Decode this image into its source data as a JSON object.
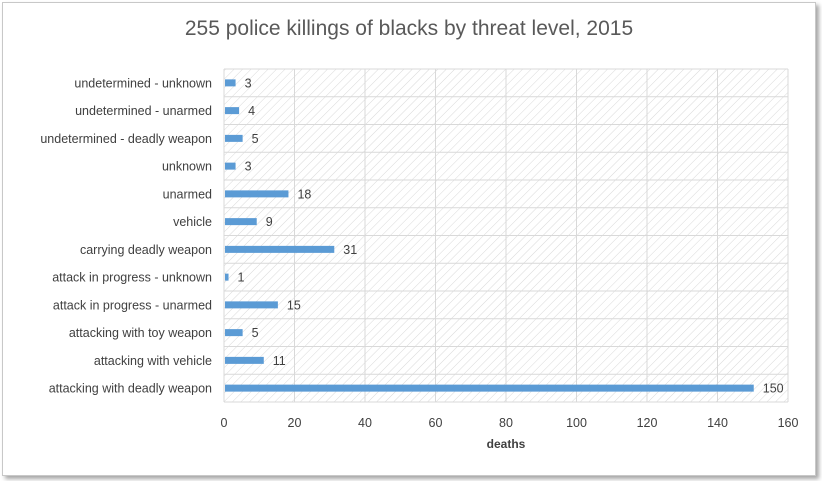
{
  "chart_data": {
    "type": "bar",
    "orientation": "horizontal",
    "title": "255 police killings of blacks by threat level, 2015",
    "xlabel": "deaths",
    "ylabel": "",
    "xlim": [
      0,
      160
    ],
    "xticks": [
      0,
      20,
      40,
      60,
      80,
      100,
      120,
      140,
      160
    ],
    "categories": [
      "undetermined - unknown",
      "undetermined - unarmed",
      "undetermined - deadly weapon",
      "unknown",
      "unarmed",
      "vehicle",
      "carrying deadly weapon",
      "attack in  progress - unknown",
      "attack in progress - unarmed",
      "attacking with toy weapon",
      "attacking with vehicle",
      "attacking with deadly weapon"
    ],
    "values": [
      3,
      4,
      5,
      3,
      18,
      9,
      31,
      1,
      15,
      5,
      11,
      150
    ],
    "bar_color": "#5b9bd5",
    "grid": true,
    "plot_background": "hatched"
  }
}
